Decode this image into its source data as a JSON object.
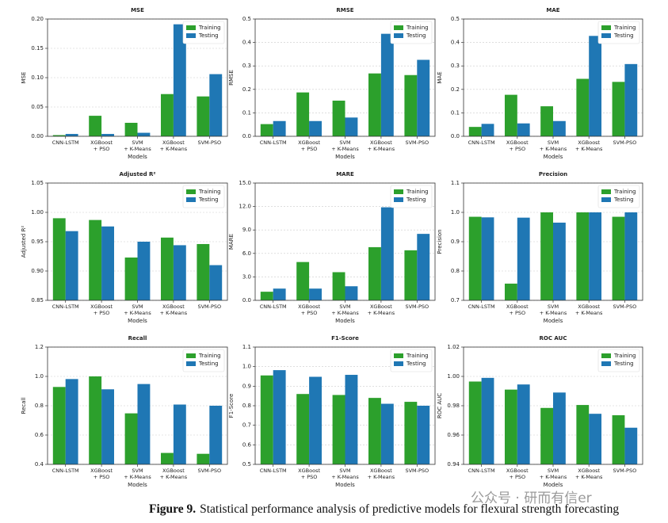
{
  "chart_data": [
    {
      "type": "bar",
      "title": "MSE",
      "xlabel": "Models",
      "ylabel": "MSE",
      "categories": [
        "CNN-LSTM",
        "XGBoost\n+ PSO",
        "SVM\n+ K-Means",
        "XGBoost\n+ K-Means",
        "SVM-PSO"
      ],
      "series": [
        {
          "name": "Training",
          "color": "#2ca02c",
          "values": [
            0.002,
            0.035,
            0.023,
            0.072,
            0.068
          ]
        },
        {
          "name": "Testing",
          "color": "#1f77b4",
          "values": [
            0.004,
            0.004,
            0.006,
            0.191,
            0.106
          ]
        }
      ],
      "ylim": [
        0,
        0.2
      ],
      "yticks": [
        {
          "value": 0,
          "label": "0.00"
        },
        0.05,
        {
          "value": 0.1,
          "label": "0.10"
        },
        0.15,
        {
          "value": 0.2,
          "label": "0.20"
        }
      ],
      "grid": true,
      "legend": "upper right"
    },
    {
      "type": "bar",
      "title": "RMSE",
      "xlabel": "Models",
      "ylabel": "RMSE",
      "categories": [
        "CNN-LSTM",
        "XGBoost\n+ PSO",
        "SVM\n+ K-Means",
        "XGBoost\n+ K-Means",
        "SVM-PSO"
      ],
      "series": [
        {
          "name": "Training",
          "color": "#2ca02c",
          "values": [
            0.052,
            0.187,
            0.152,
            0.268,
            0.261
          ]
        },
        {
          "name": "Testing",
          "color": "#1f77b4",
          "values": [
            0.065,
            0.065,
            0.08,
            0.437,
            0.326
          ]
        }
      ],
      "ylim": [
        0,
        0.5
      ],
      "yticks": [
        {
          "value": 0,
          "label": "0.0"
        },
        0.1,
        0.2,
        0.3,
        0.4,
        0.5
      ],
      "grid": true,
      "legend": "upper right"
    },
    {
      "type": "bar",
      "title": "MAE",
      "xlabel": "Models",
      "ylabel": "MAE",
      "categories": [
        "CNN-LSTM",
        "XGBoost\n+ PSO",
        "SVM\n+ K-Means",
        "XGBoost\n+ K-Means",
        "SVM-PSO"
      ],
      "series": [
        {
          "name": "Training",
          "color": "#2ca02c",
          "values": [
            0.04,
            0.177,
            0.128,
            0.245,
            0.232
          ]
        },
        {
          "name": "Testing",
          "color": "#1f77b4",
          "values": [
            0.053,
            0.055,
            0.065,
            0.428,
            0.308
          ]
        }
      ],
      "ylim": [
        0,
        0.5
      ],
      "yticks": [
        {
          "value": 0,
          "label": "0.0"
        },
        0.1,
        0.2,
        0.3,
        0.4,
        0.5
      ],
      "grid": true,
      "legend": "upper right"
    },
    {
      "type": "bar",
      "title": "Adjusted R²",
      "xlabel": "Models",
      "ylabel": "Adjusted R²",
      "categories": [
        "CNN-LSTM",
        "XGBoost\n+ PSO",
        "SVM\n+ K-Means",
        "XGBoost\n+ K-Means",
        "SVM-PSO"
      ],
      "series": [
        {
          "name": "Training",
          "color": "#2ca02c",
          "values": [
            0.99,
            0.987,
            0.923,
            0.957,
            0.946
          ]
        },
        {
          "name": "Testing",
          "color": "#1f77b4",
          "values": [
            0.968,
            0.976,
            0.95,
            0.944,
            0.91
          ]
        }
      ],
      "ylim": [
        0.85,
        1.05
      ],
      "yticks": [
        0.85,
        {
          "value": 0.9,
          "label": "0.90"
        },
        0.95,
        {
          "value": 1,
          "label": "1.00"
        },
        1.05
      ],
      "grid": true,
      "legend": "upper right"
    },
    {
      "type": "bar",
      "title": "MARE",
      "xlabel": "Models",
      "ylabel": "MARE",
      "categories": [
        "CNN-LSTM",
        "XGBoost\n+ PSO",
        "SVM\n+ K-Means",
        "XGBoost\n+ K-Means",
        "SVM-PSO"
      ],
      "series": [
        {
          "name": "Training",
          "color": "#2ca02c",
          "values": [
            1.1,
            4.9,
            3.6,
            6.8,
            6.4
          ]
        },
        {
          "name": "Testing",
          "color": "#1f77b4",
          "values": [
            1.5,
            1.5,
            1.8,
            11.9,
            8.5
          ]
        }
      ],
      "ylim": [
        0,
        15
      ],
      "yticks": [
        {
          "value": 0,
          "label": "0.0"
        },
        {
          "value": 3,
          "label": "3.0"
        },
        {
          "value": 6,
          "label": "6.0"
        },
        {
          "value": 9,
          "label": "9.0"
        },
        {
          "value": 12,
          "label": "12.0"
        },
        {
          "value": 15,
          "label": "15.0"
        }
      ],
      "grid": true,
      "legend": "upper right"
    },
    {
      "type": "bar",
      "title": "Precision",
      "xlabel": "Models",
      "ylabel": "Precision",
      "categories": [
        "CNN-LSTM",
        "XGBoost\n+ PSO",
        "SVM\n+ K-Means",
        "XGBoost\n+ K-Means",
        "SVM-PSO"
      ],
      "series": [
        {
          "name": "Training",
          "color": "#2ca02c",
          "values": [
            0.985,
            0.757,
            1.0,
            1.0,
            0.985
          ]
        },
        {
          "name": "Testing",
          "color": "#1f77b4",
          "values": [
            0.983,
            0.982,
            0.965,
            1.0,
            1.0
          ]
        }
      ],
      "ylim": [
        0.7,
        1.1
      ],
      "yticks": [
        0.7,
        0.8,
        0.9,
        {
          "value": 1,
          "label": "1.0"
        },
        1.1
      ],
      "grid": true,
      "legend": "upper right"
    },
    {
      "type": "bar",
      "title": "Recall",
      "xlabel": "Models",
      "ylabel": "Recall",
      "categories": [
        "CNN-LSTM",
        "XGBoost\n+ PSO",
        "SVM\n+ K-Means",
        "XGBoost\n+ K-Means",
        "SVM-PSO"
      ],
      "series": [
        {
          "name": "Training",
          "color": "#2ca02c",
          "values": [
            0.928,
            1.0,
            0.748,
            0.478,
            0.472
          ]
        },
        {
          "name": "Testing",
          "color": "#1f77b4",
          "values": [
            0.982,
            0.912,
            0.948,
            0.808,
            0.8
          ]
        }
      ],
      "ylim": [
        0.4,
        1.2
      ],
      "yticks": [
        0.4,
        0.6,
        0.8,
        {
          "value": 1,
          "label": "1.0"
        },
        1.2
      ],
      "grid": true,
      "legend": "upper right"
    },
    {
      "type": "bar",
      "title": "F1-Score",
      "xlabel": "Models",
      "ylabel": "F1-Score",
      "categories": [
        "CNN-LSTM",
        "XGBoost\n+ PSO",
        "SVM\n+ K-Means",
        "XGBoost\n+ K-Means",
        "SVM-PSO"
      ],
      "series": [
        {
          "name": "Training",
          "color": "#2ca02c",
          "values": [
            0.955,
            0.86,
            0.855,
            0.84,
            0.82
          ]
        },
        {
          "name": "Testing",
          "color": "#1f77b4",
          "values": [
            0.982,
            0.948,
            0.958,
            0.81,
            0.8
          ]
        }
      ],
      "ylim": [
        0.5,
        1.1
      ],
      "yticks": [
        0.5,
        0.6,
        0.7,
        0.8,
        0.9,
        {
          "value": 1,
          "label": "1.0"
        },
        1.1
      ],
      "grid": true,
      "legend": "upper right"
    },
    {
      "type": "bar",
      "title": "ROC AUC",
      "xlabel": "Models",
      "ylabel": "ROC AUC",
      "categories": [
        "CNN-LSTM",
        "XGBoost\n+ PSO",
        "SVM\n+ K-Means",
        "XGBoost\n+ K-Means",
        "SVM-PSO"
      ],
      "series": [
        {
          "name": "Training",
          "color": "#2ca02c",
          "values": [
            0.9965,
            0.991,
            0.9785,
            0.9805,
            0.9735
          ]
        },
        {
          "name": "Testing",
          "color": "#1f77b4",
          "values": [
            0.999,
            0.9945,
            0.989,
            0.9745,
            0.965
          ]
        }
      ],
      "ylim": [
        0.94,
        1.02
      ],
      "yticks": [
        0.94,
        0.96,
        0.98,
        {
          "value": 1,
          "label": "1.00"
        },
        1.02
      ],
      "grid": true,
      "legend": "upper right"
    }
  ],
  "caption": {
    "label": "Figure 9.",
    "text": "Statistical performance analysis of predictive models for flexural strength forecasting"
  },
  "watermark": "公众号 · 研而有信er"
}
